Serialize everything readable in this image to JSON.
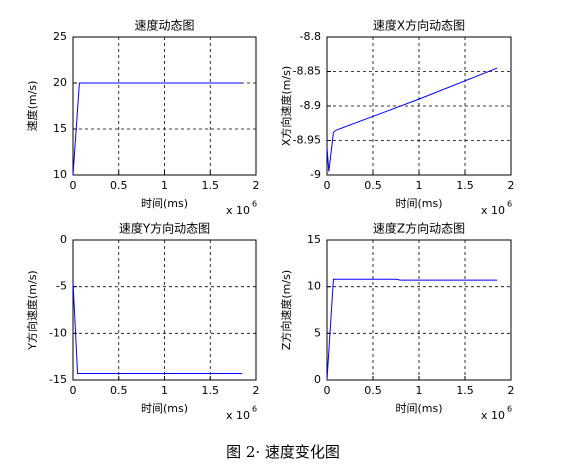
{
  "chart_data": [
    {
      "type": "line",
      "title": "速度动态图",
      "xlabel": "时间(ms)",
      "ylabel": "速度(m/s)",
      "x_scale_label": "x 10",
      "x_scale_exponent": "6",
      "x": [
        0,
        0.07,
        0.3,
        0.6,
        1.0,
        1.5,
        1.85
      ],
      "values": [
        10,
        20,
        20,
        20,
        20,
        20,
        20
      ],
      "color": "#0000ff",
      "xlim": [
        0,
        2
      ],
      "xticks": [
        0,
        0.5,
        1,
        1.5,
        2
      ],
      "ylim": [
        10,
        25
      ],
      "yticks": [
        10,
        15,
        20,
        25
      ],
      "grid": true
    },
    {
      "type": "line",
      "title": "速度X方向动态图",
      "xlabel": "时间(ms)",
      "ylabel": "X方向速度(m/s)",
      "x_scale_label": "x 10",
      "x_scale_exponent": "6",
      "x": [
        0,
        0.02,
        0.07,
        0.1,
        1.0,
        1.85
      ],
      "values": [
        -8.96,
        -8.995,
        -8.938,
        -8.935,
        -8.89,
        -8.845
      ],
      "color": "#0000ff",
      "xlim": [
        0,
        2
      ],
      "xticks": [
        0,
        0.5,
        1,
        1.5,
        2
      ],
      "ylim": [
        -9,
        -8.8
      ],
      "yticks": [
        -9,
        -8.95,
        -8.9,
        -8.85,
        -8.8
      ],
      "grid": true
    },
    {
      "type": "line",
      "title": "速度Y方向动态图",
      "xlabel": "时间(ms)",
      "ylabel": "Y方向速度(m/s)",
      "x_scale_label": "x 10",
      "x_scale_exponent": "6",
      "x": [
        0,
        0.05,
        0.5,
        1.0,
        1.85
      ],
      "values": [
        -4.5,
        -14.3,
        -14.3,
        -14.3,
        -14.3
      ],
      "color": "#0000ff",
      "xlim": [
        0,
        2
      ],
      "xticks": [
        0,
        0.5,
        1,
        1.5,
        2
      ],
      "ylim": [
        -15,
        0
      ],
      "yticks": [
        -15,
        -10,
        -5,
        0
      ],
      "grid": true
    },
    {
      "type": "line",
      "title": "速度Z方向动态图",
      "xlabel": "时间(ms)",
      "ylabel": "Z方向速度(m/s)",
      "x_scale_label": "x 10",
      "x_scale_exponent": "6",
      "x": [
        0,
        0.07,
        0.75,
        0.8,
        1.85
      ],
      "values": [
        0,
        10.8,
        10.8,
        10.7,
        10.7
      ],
      "color": "#0000ff",
      "xlim": [
        0,
        2
      ],
      "xticks": [
        0,
        0.5,
        1,
        1.5,
        2
      ],
      "ylim": [
        0,
        15
      ],
      "yticks": [
        0,
        5,
        10,
        15
      ],
      "grid": true
    }
  ],
  "caption": "图 2· 速度变化图"
}
